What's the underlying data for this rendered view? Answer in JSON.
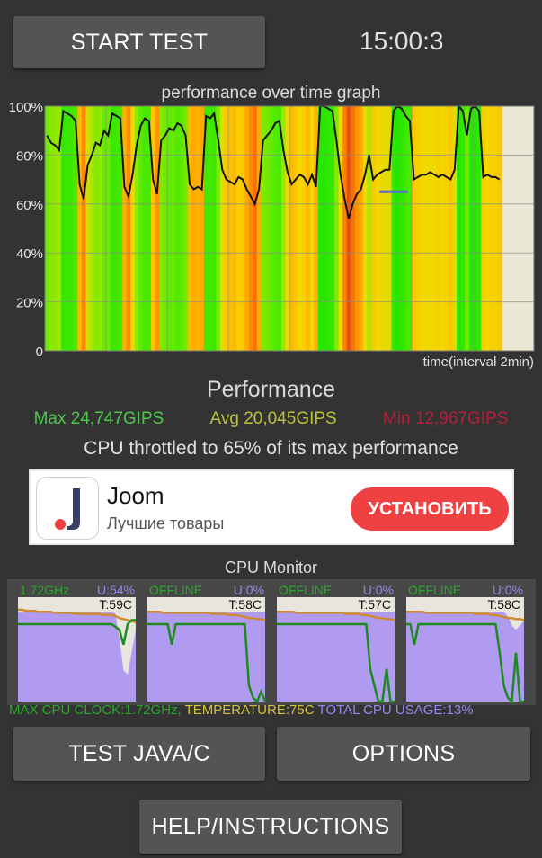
{
  "start_button": "START TEST",
  "clock": "15:00:3",
  "graph": {
    "title": "performance over time graph",
    "y_ticks": [
      "100%",
      "80%",
      "60%",
      "40%",
      "20%",
      "0"
    ],
    "x_label": "time(interval 2min)"
  },
  "chart_data": {
    "type": "area",
    "title": "performance over time graph",
    "xlabel": "time(interval 2min)",
    "ylabel": "",
    "ylim": [
      0,
      100
    ],
    "grid": true,
    "y_tick_labels": [
      "0",
      "20%",
      "40%",
      "60%",
      "80%",
      "100%"
    ],
    "values": [
      88,
      85,
      84,
      82,
      98,
      97,
      96,
      94,
      68,
      62,
      76,
      80,
      85,
      84,
      90,
      88,
      97,
      96,
      95,
      67,
      63,
      72,
      84,
      92,
      95,
      94,
      70,
      64,
      86,
      88,
      91,
      90,
      93,
      92,
      88,
      68,
      66,
      67,
      66,
      96,
      95,
      97,
      86,
      74,
      70,
      69,
      68,
      71,
      70,
      66,
      63,
      60,
      66,
      86,
      88,
      90,
      93,
      94,
      82,
      73,
      68,
      70,
      72,
      71,
      68,
      72,
      67,
      100,
      100,
      99,
      98,
      86,
      72,
      62,
      54,
      60,
      64,
      66,
      72,
      80,
      70,
      72,
      73,
      74,
      74,
      98,
      100,
      99,
      96,
      94,
      70,
      71,
      72,
      72,
      73,
      72,
      71,
      72,
      71,
      70,
      74,
      100,
      98,
      88,
      99,
      100,
      98,
      71,
      72,
      71,
      71,
      70
    ],
    "marker_value": 65,
    "samples": 112
  },
  "performance": {
    "heading": "Performance",
    "max": "Max 24,747GIPS",
    "avg": "Avg 20,045GIPS",
    "min": "Min 12,967GIPS",
    "throttle": "CPU throttled to 65% of its max performance"
  },
  "ad": {
    "title": "Joom",
    "subtitle": "Лучшие товары",
    "button": "УСТАНОВИТЬ"
  },
  "cpu_monitor": {
    "title": "CPU Monitor",
    "cores": [
      {
        "status": "1.72GHz",
        "usage": "U:54%",
        "temp": "T:59C",
        "freq": [
          95,
          95,
          95,
          95,
          95,
          95,
          95,
          95,
          95,
          95,
          95,
          95,
          95,
          95,
          95,
          95,
          95,
          95,
          95,
          95,
          95,
          95,
          95,
          95,
          92,
          88,
          70,
          95,
          100,
          100
        ],
        "temp_series": [
          88,
          88,
          87,
          87,
          87,
          86,
          86,
          86,
          86,
          85,
          85,
          85,
          85,
          85,
          84,
          84,
          84,
          84,
          84,
          84,
          84,
          83,
          83,
          83,
          82,
          80,
          79,
          78,
          77,
          76
        ],
        "util": [
          100,
          100,
          100,
          100,
          100,
          100,
          100,
          100,
          100,
          100,
          100,
          100,
          100,
          100,
          100,
          100,
          100,
          100,
          100,
          100,
          100,
          100,
          100,
          100,
          98,
          70,
          35,
          30,
          55,
          80
        ]
      },
      {
        "status": "OFFLINE",
        "usage": "U:0%",
        "temp": "T:58C",
        "freq": [
          95,
          95,
          95,
          95,
          95,
          95,
          70,
          95,
          95,
          95,
          95,
          95,
          95,
          95,
          95,
          95,
          95,
          95,
          95,
          95,
          95,
          95,
          95,
          95,
          95,
          20,
          5,
          0,
          12,
          0
        ],
        "temp_series": [
          86,
          86,
          86,
          86,
          85,
          85,
          85,
          85,
          85,
          85,
          85,
          85,
          85,
          85,
          85,
          85,
          84,
          84,
          84,
          84,
          83,
          83,
          83,
          82,
          81,
          80,
          80,
          79,
          79,
          78
        ],
        "util": [
          100,
          100,
          100,
          100,
          100,
          100,
          100,
          100,
          100,
          100,
          100,
          100,
          100,
          100,
          100,
          100,
          100,
          100,
          100,
          100,
          100,
          100,
          100,
          100,
          100,
          100,
          100,
          100,
          100,
          100
        ]
      },
      {
        "status": "OFFLINE",
        "usage": "U:0%",
        "temp": "T:57C",
        "freq": [
          95,
          95,
          95,
          95,
          95,
          95,
          95,
          95,
          95,
          95,
          95,
          95,
          95,
          95,
          95,
          95,
          95,
          95,
          95,
          95,
          95,
          95,
          95,
          40,
          20,
          0,
          0,
          40,
          0,
          0
        ],
        "temp_series": [
          86,
          86,
          86,
          86,
          86,
          85,
          85,
          85,
          85,
          85,
          85,
          85,
          85,
          85,
          85,
          85,
          85,
          84,
          84,
          84,
          84,
          83,
          83,
          82,
          81,
          80,
          80,
          79,
          79,
          78
        ],
        "util": [
          100,
          100,
          100,
          100,
          100,
          100,
          100,
          100,
          100,
          100,
          100,
          100,
          100,
          100,
          100,
          100,
          100,
          100,
          100,
          100,
          100,
          100,
          100,
          100,
          100,
          100,
          100,
          100,
          100,
          100
        ]
      },
      {
        "status": "OFFLINE",
        "usage": "U:0%",
        "temp": "T:58C",
        "freq": [
          95,
          95,
          70,
          95,
          95,
          95,
          95,
          95,
          95,
          95,
          95,
          95,
          95,
          95,
          95,
          95,
          95,
          95,
          95,
          95,
          95,
          95,
          95,
          60,
          20,
          5,
          0,
          60,
          0,
          0
        ],
        "temp_series": [
          86,
          86,
          86,
          86,
          86,
          85,
          85,
          85,
          85,
          85,
          85,
          85,
          85,
          85,
          85,
          85,
          85,
          84,
          84,
          84,
          84,
          83,
          83,
          82,
          81,
          80,
          80,
          79,
          79,
          78
        ],
        "util": [
          100,
          100,
          100,
          100,
          100,
          100,
          100,
          100,
          100,
          100,
          100,
          100,
          100,
          100,
          100,
          100,
          100,
          100,
          100,
          100,
          100,
          100,
          100,
          100,
          100,
          95,
          85,
          80,
          85,
          90
        ]
      }
    ],
    "footer": {
      "max_clock": "MAX CPU CLOCK:1.72GHz,",
      "temperature": "TEMPERATURE:75C",
      "total_usage": "TOTAL CPU USAGE:13%"
    }
  },
  "buttons": {
    "test": "TEST JAVA/C",
    "options": "OPTIONS",
    "help": "HELP/INSTRUCTIONS"
  },
  "colors": {
    "background": "#333333",
    "button": "#545454",
    "max_text": "#4cc94c",
    "avg_text": "#b8c23a",
    "min_text": "#b3203a",
    "freq_line": "#1d8a1d",
    "temp_line": "#d08a32",
    "cpu_usage_fill": "#b09bf0",
    "ad_button": "#ef4141"
  }
}
